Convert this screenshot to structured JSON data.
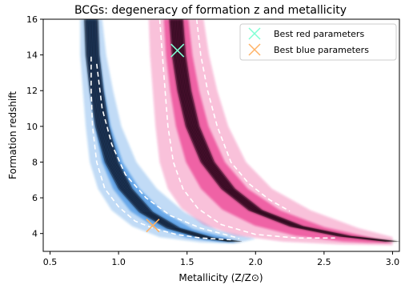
{
  "chart_data": {
    "type": "contour",
    "title": "BCGs: degeneracy of formation z and metallicity",
    "xlabel": "Metallicity (Z/Z⊙)",
    "ylabel": "Formation redshift",
    "xlim": [
      0.45,
      3.05
    ],
    "ylim": [
      3.0,
      16.0
    ],
    "xticks": [
      0.5,
      1.0,
      1.5,
      2.0,
      2.5,
      3.0
    ],
    "xtick_labels": [
      "0.5",
      "1.0",
      "1.5",
      "2.0",
      "2.5",
      "3.0"
    ],
    "yticks": [
      4,
      6,
      8,
      10,
      12,
      14,
      16
    ],
    "ytick_labels": [
      "4",
      "6",
      "8",
      "10",
      "12",
      "14",
      "16"
    ],
    "grid": false,
    "legend_position": "top-right",
    "series": [
      {
        "name": "blue_region",
        "color": "#1f7fe0",
        "ridge": [
          [
            0.8,
            16
          ],
          [
            0.81,
            14
          ],
          [
            0.84,
            12
          ],
          [
            0.88,
            10
          ],
          [
            0.95,
            8
          ],
          [
            1.05,
            6.5
          ],
          [
            1.2,
            5.2
          ],
          [
            1.4,
            4.3
          ],
          [
            1.65,
            3.75
          ],
          [
            1.85,
            3.55
          ]
        ],
        "outer_edge": [
          [
            0.72,
            16
          ],
          [
            0.72,
            14
          ],
          [
            0.74,
            12
          ],
          [
            0.76,
            10
          ],
          [
            0.79,
            8
          ],
          [
            0.85,
            6.5
          ],
          [
            0.95,
            5.3
          ],
          [
            1.1,
            4.4
          ],
          [
            1.3,
            3.8
          ],
          [
            1.6,
            3.5
          ],
          [
            1.85,
            3.45
          ]
        ],
        "inner_edge": [
          [
            0.88,
            16
          ],
          [
            0.91,
            14
          ],
          [
            0.96,
            12
          ],
          [
            1.02,
            10
          ],
          [
            1.13,
            8
          ],
          [
            1.28,
            6.5
          ],
          [
            1.48,
            5.2
          ],
          [
            1.72,
            4.2
          ],
          [
            2.0,
            3.7
          ]
        ],
        "contour_dashed": [
          [
            0.8,
            13.9
          ],
          [
            0.8,
            12
          ],
          [
            0.81,
            10
          ],
          [
            0.84,
            8
          ],
          [
            0.9,
            6.5
          ],
          [
            1.0,
            5.5
          ],
          [
            1.12,
            4.7
          ],
          [
            1.25,
            4.3
          ],
          [
            1.42,
            3.95
          ],
          [
            1.6,
            3.75
          ],
          [
            1.82,
            3.65
          ]
        ],
        "contour_dashed_inner": [
          [
            0.84,
            13.5
          ],
          [
            0.88,
            11
          ],
          [
            0.95,
            9
          ],
          [
            1.05,
            7.3
          ],
          [
            1.2,
            6.0
          ],
          [
            1.38,
            5.0
          ],
          [
            1.6,
            4.3
          ],
          [
            1.85,
            3.8
          ],
          [
            1.88,
            3.7
          ]
        ]
      },
      {
        "name": "red_region",
        "color": "#e8157a",
        "ridge": [
          [
            1.42,
            16
          ],
          [
            1.44,
            14
          ],
          [
            1.48,
            12
          ],
          [
            1.54,
            10
          ],
          [
            1.65,
            8
          ],
          [
            1.8,
            6.5
          ],
          [
            2.0,
            5.3
          ],
          [
            2.3,
            4.4
          ],
          [
            2.65,
            3.85
          ],
          [
            3.0,
            3.55
          ]
        ],
        "outer_edge": [
          [
            1.22,
            16
          ],
          [
            1.23,
            14
          ],
          [
            1.25,
            12
          ],
          [
            1.27,
            10
          ],
          [
            1.3,
            8
          ],
          [
            1.36,
            6.5
          ],
          [
            1.46,
            5.4
          ],
          [
            1.62,
            4.5
          ],
          [
            1.85,
            3.9
          ],
          [
            2.2,
            3.55
          ],
          [
            2.6,
            3.4
          ],
          [
            3.0,
            3.35
          ]
        ],
        "inner_edge": [
          [
            1.62,
            16
          ],
          [
            1.66,
            14
          ],
          [
            1.72,
            12
          ],
          [
            1.8,
            10
          ],
          [
            1.93,
            8
          ],
          [
            2.12,
            6.5
          ],
          [
            2.4,
            5.3
          ],
          [
            2.75,
            4.3
          ],
          [
            3.0,
            3.8
          ]
        ],
        "contour_dashed": [
          [
            1.3,
            16
          ],
          [
            1.32,
            14
          ],
          [
            1.34,
            12
          ],
          [
            1.36,
            10
          ],
          [
            1.4,
            8
          ],
          [
            1.47,
            6.5
          ],
          [
            1.58,
            5.4
          ],
          [
            1.75,
            4.5
          ],
          [
            2.0,
            3.95
          ],
          [
            2.3,
            3.75
          ],
          [
            2.58,
            3.75
          ]
        ],
        "contour_dashed_inner": [
          [
            1.57,
            16
          ],
          [
            1.6,
            14
          ],
          [
            1.65,
            12
          ],
          [
            1.72,
            10
          ],
          [
            1.82,
            8
          ],
          [
            1.95,
            6.8
          ],
          [
            2.1,
            5.9
          ],
          [
            2.25,
            5.25
          ]
        ]
      },
      {
        "name": "Best red parameters",
        "type": "marker",
        "marker": "x",
        "color": "#7fffd4",
        "x": 1.43,
        "y": 14.25
      },
      {
        "name": "Best blue parameters",
        "type": "marker",
        "marker": "x",
        "color": "#ffb366",
        "x": 1.25,
        "y": 4.45
      }
    ],
    "legend": [
      {
        "label": "Best red parameters",
        "color": "#7fffd4",
        "marker": "x"
      },
      {
        "label": "Best blue parameters",
        "color": "#ffb366",
        "marker": "x"
      }
    ]
  }
}
